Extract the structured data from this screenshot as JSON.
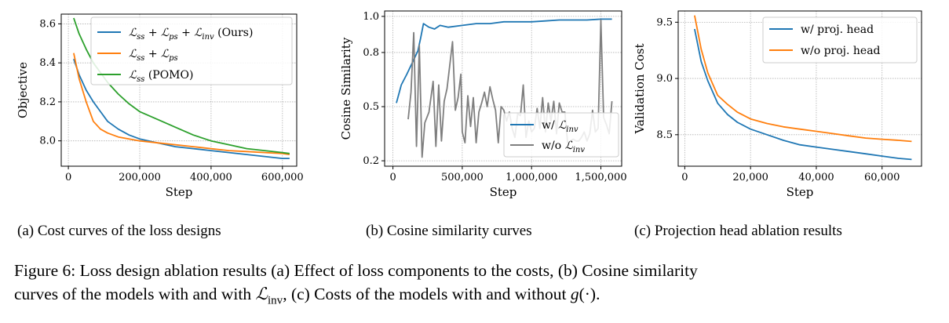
{
  "colors": {
    "blue": "#1f77b4",
    "orange": "#ff7f0e",
    "green": "#2ca02c",
    "gray": "#7f7f7f"
  },
  "chart_data": [
    {
      "type": "line",
      "id": "a",
      "xlabel": "Step",
      "ylabel": "Objective",
      "xlim": [
        -20000,
        640000
      ],
      "ylim": [
        7.87,
        8.65
      ],
      "xticks": [
        0,
        200000,
        400000,
        600000
      ],
      "xtick_labels": [
        "0",
        "200,000",
        "400,000",
        "600,000"
      ],
      "yticks": [
        8.0,
        8.2,
        8.4,
        8.6
      ],
      "ytick_labels": [
        "8.0",
        "8.2",
        "8.4",
        "8.6"
      ],
      "grid": true,
      "legend_position": "top-right",
      "series": [
        {
          "name": "Lss + Lps + Linv (Ours)",
          "color": "blue",
          "x": [
            15000,
            30000,
            50000,
            70000,
            90000,
            110000,
            140000,
            170000,
            200000,
            250000,
            300000,
            350000,
            400000,
            450000,
            500000,
            550000,
            600000,
            620000
          ],
          "y": [
            8.42,
            8.34,
            8.26,
            8.2,
            8.15,
            8.1,
            8.06,
            8.03,
            8.01,
            7.99,
            7.97,
            7.96,
            7.95,
            7.94,
            7.93,
            7.92,
            7.91,
            7.91
          ]
        },
        {
          "name": "Lss + Lps",
          "color": "orange",
          "x": [
            15000,
            30000,
            50000,
            70000,
            90000,
            110000,
            140000,
            170000,
            200000,
            250000,
            300000,
            350000,
            400000,
            450000,
            500000,
            550000,
            600000,
            620000
          ],
          "y": [
            8.45,
            8.32,
            8.2,
            8.1,
            8.06,
            8.04,
            8.02,
            8.01,
            8.0,
            7.99,
            7.98,
            7.97,
            7.96,
            7.95,
            7.945,
            7.94,
            7.935,
            7.93
          ]
        },
        {
          "name": "Lss (POMO)",
          "color": "green",
          "x": [
            15000,
            30000,
            50000,
            70000,
            90000,
            110000,
            140000,
            170000,
            200000,
            250000,
            300000,
            350000,
            400000,
            450000,
            500000,
            550000,
            600000,
            620000
          ],
          "y": [
            8.63,
            8.55,
            8.47,
            8.4,
            8.35,
            8.3,
            8.24,
            8.19,
            8.15,
            8.11,
            8.07,
            8.03,
            8.0,
            7.98,
            7.96,
            7.95,
            7.94,
            7.935
          ]
        }
      ]
    },
    {
      "type": "line",
      "id": "b",
      "xlabel": "Step",
      "ylabel": "Cosine Similarity",
      "xlim": [
        -60000,
        1650000
      ],
      "ylim": [
        0.17,
        1.03
      ],
      "xticks": [
        0,
        500000,
        1000000,
        1500000
      ],
      "xtick_labels": [
        "0",
        "500,000",
        "1,000,000",
        "1,500,000"
      ],
      "yticks": [
        0.2,
        0.5,
        0.8,
        1.0
      ],
      "ytick_labels": [
        "0.2",
        "0.5",
        "0.8",
        "1.0"
      ],
      "grid": true,
      "legend_position": "lower-right",
      "series": [
        {
          "name": "w/ Linv",
          "color": "blue",
          "x": [
            25000,
            60000,
            100000,
            150000,
            180000,
            200000,
            220000,
            260000,
            300000,
            340000,
            400000,
            500000,
            600000,
            700000,
            800000,
            900000,
            1000000,
            1100000,
            1200000,
            1300000,
            1400000,
            1500000,
            1580000
          ],
          "y": [
            0.52,
            0.62,
            0.68,
            0.76,
            0.81,
            0.88,
            0.96,
            0.94,
            0.93,
            0.95,
            0.94,
            0.95,
            0.96,
            0.96,
            0.97,
            0.97,
            0.97,
            0.975,
            0.98,
            0.98,
            0.98,
            0.985,
            0.985
          ]
        },
        {
          "name": "w/o Linv",
          "color": "gray",
          "x": [
            110000,
            130000,
            150000,
            170000,
            190000,
            210000,
            230000,
            260000,
            290000,
            310000,
            330000,
            350000,
            370000,
            390000,
            410000,
            430000,
            450000,
            470000,
            490000,
            500000,
            520000,
            540000,
            560000,
            580000,
            600000,
            620000,
            640000,
            660000,
            680000,
            700000,
            720000,
            740000,
            760000,
            780000,
            800000,
            820000,
            840000,
            860000,
            880000,
            900000,
            920000,
            940000,
            960000,
            980000,
            1000000,
            1020000,
            1040000,
            1060000,
            1080000,
            1100000,
            1120000,
            1140000,
            1160000,
            1180000,
            1200000,
            1220000,
            1240000,
            1260000,
            1280000,
            1300000,
            1320000,
            1340000,
            1360000,
            1380000,
            1400000,
            1420000,
            1440000,
            1460000,
            1480000,
            1500000,
            1520000,
            1540000,
            1560000,
            1580000
          ],
          "y": [
            0.43,
            0.58,
            0.91,
            0.28,
            0.84,
            0.22,
            0.41,
            0.47,
            0.64,
            0.28,
            0.62,
            0.31,
            0.53,
            0.6,
            0.73,
            0.86,
            0.48,
            0.55,
            0.68,
            0.36,
            0.3,
            0.56,
            0.39,
            0.55,
            0.3,
            0.47,
            0.52,
            0.58,
            0.5,
            0.61,
            0.54,
            0.48,
            0.3,
            0.5,
            0.48,
            0.42,
            0.47,
            0.38,
            0.33,
            0.46,
            0.45,
            0.62,
            0.33,
            0.42,
            0.36,
            0.38,
            0.49,
            0.38,
            0.55,
            0.36,
            0.52,
            0.42,
            0.53,
            0.35,
            0.52,
            0.47,
            0.47,
            0.3,
            0.31,
            0.32,
            0.31,
            0.31,
            0.33,
            0.36,
            0.31,
            0.35,
            0.48,
            0.36,
            0.38,
            0.98,
            0.44,
            0.4,
            0.35,
            0.53
          ]
        }
      ]
    },
    {
      "type": "line",
      "id": "c",
      "xlabel": "Step",
      "ylabel": "Validation Cost",
      "xlim": [
        -2000,
        72000
      ],
      "ylim": [
        8.22,
        9.6
      ],
      "xticks": [
        0,
        20000,
        40000,
        60000
      ],
      "xtick_labels": [
        "0",
        "20,000",
        "40,000",
        "60,000"
      ],
      "yticks": [
        8.5,
        9.0,
        9.5
      ],
      "ytick_labels": [
        "8.5",
        "9.0",
        "9.5"
      ],
      "grid": true,
      "legend_position": "top-right",
      "series": [
        {
          "name": "w/ proj. head",
          "color": "blue",
          "x": [
            3000,
            5000,
            7000,
            10000,
            13000,
            16000,
            20000,
            25000,
            30000,
            35000,
            40000,
            45000,
            50000,
            55000,
            60000,
            65000,
            69000
          ],
          "y": [
            9.44,
            9.15,
            8.98,
            8.78,
            8.68,
            8.61,
            8.55,
            8.5,
            8.45,
            8.41,
            8.39,
            8.37,
            8.35,
            8.33,
            8.31,
            8.29,
            8.28
          ]
        },
        {
          "name": "w/o proj. head",
          "color": "orange",
          "x": [
            3000,
            5000,
            7000,
            10000,
            13000,
            16000,
            20000,
            25000,
            30000,
            35000,
            40000,
            45000,
            50000,
            55000,
            60000,
            65000,
            69000
          ],
          "y": [
            9.56,
            9.26,
            9.05,
            8.85,
            8.77,
            8.7,
            8.64,
            8.6,
            8.57,
            8.55,
            8.53,
            8.51,
            8.49,
            8.47,
            8.46,
            8.45,
            8.44
          ]
        }
      ]
    }
  ],
  "subcaptions": {
    "a": "(a) Cost curves of the loss designs",
    "b": "(b) Cosine similarity curves",
    "c": "(c) Projection head ablation results"
  },
  "caption": {
    "line1": "Figure 6: Loss design ablation results (a) Effect of loss components to the costs, (b) Cosine similarity",
    "line2_pre": "curves of the models with and with ",
    "line2_mid": ", (c) Costs of the models with and without ",
    "line2_end": "."
  },
  "math": {
    "L": "ℒ",
    "ss": "ss",
    "ps": "ps",
    "inv": "inv",
    "ours": "(Ours)",
    "pomo": "(POMO)",
    "w_prefix": "w/",
    "wo_prefix": "w/o",
    "g": "g",
    "g_arg": "(·)"
  }
}
